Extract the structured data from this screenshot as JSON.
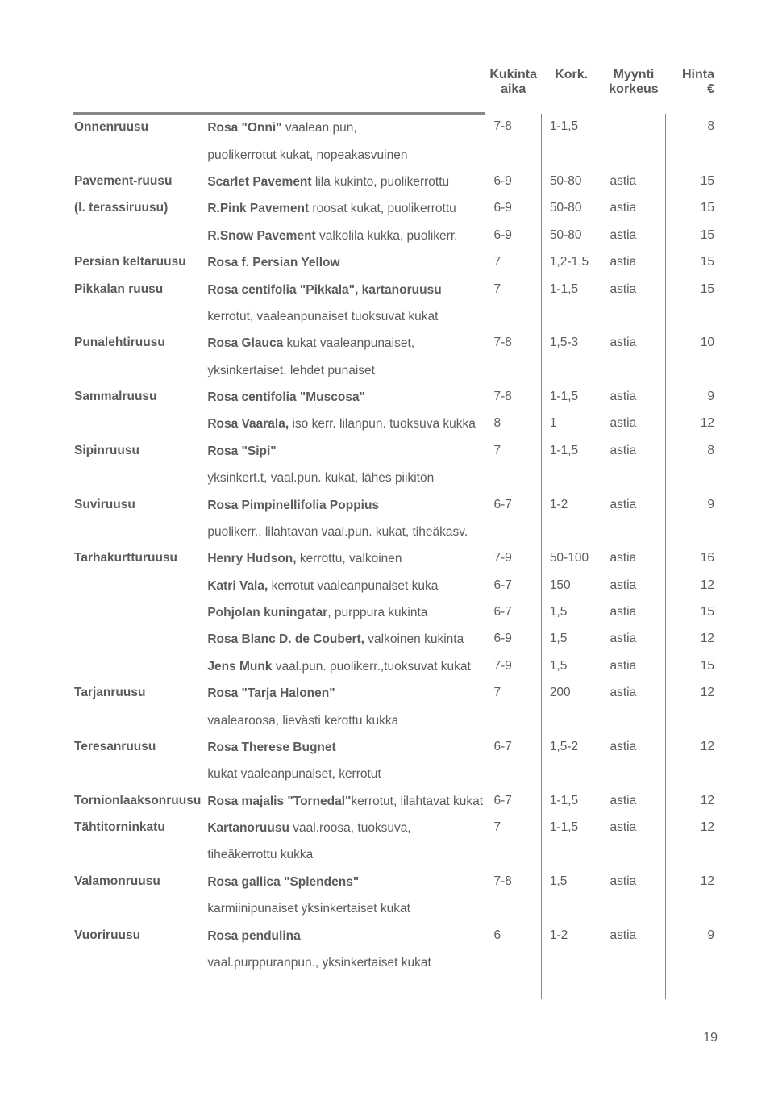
{
  "headers": {
    "c3a": "Kukinta",
    "c3b": "aika",
    "c4": "Kork.",
    "c5a": "Myynti",
    "c5b": "korkeus",
    "c6a": "Hinta",
    "c6b": "€"
  },
  "rows": [
    {
      "name": "Onnenruusu",
      "descHTML": "<span class='b'>Rosa \"Onni\"</span> vaalean.pun,",
      "c3": "7-8",
      "c4": "1-1,5",
      "c5": "",
      "c6": "8"
    },
    {
      "name": "",
      "descHTML": "puolikerrotut kukat, nopeakasvuinen",
      "c3": "",
      "c4": "",
      "c5": "",
      "c6": ""
    },
    {
      "name": "Pavement-ruusu",
      "descHTML": "<span class='b'>Scarlet Pavement</span> lila kukinto, puolikerrottu",
      "c3": "6-9",
      "c4": "50-80",
      "c5": "astia",
      "c6": "15"
    },
    {
      "name": "(l. terassiruusu)",
      "descHTML": "<span class='b'>R.Pink Pavement</span> roosat kukat, puolikerrottu",
      "c3": "6-9",
      "c4": "50-80",
      "c5": "astia",
      "c6": "15"
    },
    {
      "name": "",
      "descHTML": "<span class='b'>R.Snow Pavement</span> valkolila kukka, puolikerr.",
      "c3": "6-9",
      "c4": "50-80",
      "c5": "astia",
      "c6": "15"
    },
    {
      "name": "Persian keltaruusu",
      "descHTML": "<span class='b'>Rosa f. Persian Yellow</span>",
      "c3": "7",
      "c4": "1,2-1,5",
      "c5": "astia",
      "c6": "15"
    },
    {
      "name": "Pikkalan ruusu",
      "descHTML": "<span class='b'>Rosa centifolia \"Pikkala\", kartanoruusu</span>",
      "c3": "7",
      "c4": "1-1,5",
      "c5": "astia",
      "c6": "15"
    },
    {
      "name": "",
      "descHTML": "kerrotut, vaaleanpunaiset tuoksuvat kukat",
      "c3": "",
      "c4": "",
      "c5": "",
      "c6": ""
    },
    {
      "name": "Punalehtiruusu",
      "descHTML": "<span class='b'>Rosa Glauca</span> kukat vaaleanpunaiset,",
      "c3": "7-8",
      "c4": "1,5-3",
      "c5": "astia",
      "c6": "10"
    },
    {
      "name": "",
      "descHTML": "yksinkertaiset, lehdet punaiset",
      "c3": "",
      "c4": "",
      "c5": "",
      "c6": ""
    },
    {
      "name": "Sammalruusu",
      "descHTML": "<span class='b'>Rosa centifolia \"Muscosa\"</span>",
      "c3": "7-8",
      "c4": "1-1,5",
      "c5": "astia",
      "c6": "9"
    },
    {
      "name": "",
      "descHTML": "<span class='b'>Rosa Vaarala,</span> iso kerr. lilanpun. tuoksuva kukka",
      "c3": "8",
      "c4": "1",
      "c5": "astia",
      "c6": "12"
    },
    {
      "name": "Sipinruusu",
      "descHTML": "<span class='b'>Rosa \"Sipi\"</span>",
      "c3": "7",
      "c4": "1-1,5",
      "c5": "astia",
      "c6": "8"
    },
    {
      "name": "",
      "descHTML": "yksinkert.t, vaal.pun. kukat, lähes piikitön",
      "c3": "",
      "c4": "",
      "c5": "",
      "c6": ""
    },
    {
      "name": "Suviruusu",
      "descHTML": "<span class='b'>Rosa Pimpinellifolia Poppius</span>",
      "c3": "6-7",
      "c4": "1-2",
      "c5": "astia",
      "c6": "9"
    },
    {
      "name": "",
      "descHTML": "puolikerr., lilahtavan vaal.pun. kukat, tiheäkasv.",
      "c3": "",
      "c4": "",
      "c5": "",
      "c6": ""
    },
    {
      "name": "Tarhakurtturuusu",
      "descHTML": "<span class='b'>Henry Hudson,</span> kerrottu, valkoinen",
      "c3": "7-9",
      "c4": "50-100",
      "c5": "astia",
      "c6": "16"
    },
    {
      "name": "",
      "descHTML": "<span class='b'>Katri Vala,</span> kerrotut vaaleanpunaiset kuka",
      "c3": "6-7",
      "c4": "150",
      "c5": "astia",
      "c6": "12"
    },
    {
      "name": "",
      "descHTML": "<span class='b'>Pohjolan kuningatar</span>, purppura kukinta",
      "c3": "6-7",
      "c4": "1,5",
      "c5": "astia",
      "c6": "15"
    },
    {
      "name": "",
      "descHTML": "<span class='b'>Rosa Blanc D. de Coubert,</span> valkoinen kukinta",
      "c3": "6-9",
      "c4": "1,5",
      "c5": "astia",
      "c6": "12"
    },
    {
      "name": "",
      "descHTML": "<span class='b'>Jens Munk</span> vaal.pun. puolikerr.,tuoksuvat kukat",
      "c3": "7-9",
      "c4": "1,5",
      "c5": "astia",
      "c6": "15"
    },
    {
      "name": "Tarjanruusu",
      "descHTML": "<span class='b'>Rosa \"Tarja Halonen\"</span>",
      "c3": "7",
      "c4": "200",
      "c5": "astia",
      "c6": "12"
    },
    {
      "name": "",
      "descHTML": "vaalearoosa, lievästi kerottu kukka",
      "c3": "",
      "c4": "",
      "c5": "",
      "c6": ""
    },
    {
      "name": "Teresanruusu",
      "descHTML": "<span class='b'>Rosa Therese Bugnet</span>",
      "c3": "6-7",
      "c4": "1,5-2",
      "c5": "astia",
      "c6": "12"
    },
    {
      "name": "",
      "descHTML": "kukat vaaleanpunaiset, kerrotut",
      "c3": "",
      "c4": "",
      "c5": "",
      "c6": ""
    },
    {
      "name": "Tornionlaaksonruusu",
      "descHTML": "<span class='b'>Rosa majalis \"Tornedal\"</span>kerrotut, lilahtavat kukat",
      "c3": "6-7",
      "c4": "1-1,5",
      "c5": "astia",
      "c6": "12"
    },
    {
      "name": "Tähtitorninkatu",
      "descHTML": "<span class='b'>Kartanoruusu</span> vaal.roosa, tuoksuva,",
      "c3": "7",
      "c4": "1-1,5",
      "c5": "astia",
      "c6": "12"
    },
    {
      "name": "",
      "descHTML": "tiheäkerrottu kukka",
      "c3": "",
      "c4": "",
      "c5": "",
      "c6": ""
    },
    {
      "name": "Valamonruusu",
      "descHTML": "<span class='b'>Rosa gallica \"Splendens\"</span>",
      "c3": "7-8",
      "c4": "1,5",
      "c5": "astia",
      "c6": "12"
    },
    {
      "name": "",
      "descHTML": "karmiinipunaiset yksinkertaiset kukat",
      "c3": "",
      "c4": "",
      "c5": "",
      "c6": ""
    },
    {
      "name": "Vuoriruusu",
      "descHTML": "<span class='b'>Rosa pendulina</span>",
      "c3": "6",
      "c4": "1-2",
      "c5": "astia",
      "c6": "9"
    },
    {
      "name": "",
      "descHTML": "vaal.purppuranpun., yksinkertaiset kukat",
      "c3": "",
      "c4": "",
      "c5": "",
      "c6": ""
    },
    {
      "name": "",
      "descHTML": "",
      "c3": "",
      "c4": "",
      "c5": "",
      "c6": ""
    },
    {
      "name": "",
      "descHTML": "",
      "c3": "",
      "c4": "",
      "c5": "",
      "c6": ""
    }
  ],
  "pageNumber": "19"
}
